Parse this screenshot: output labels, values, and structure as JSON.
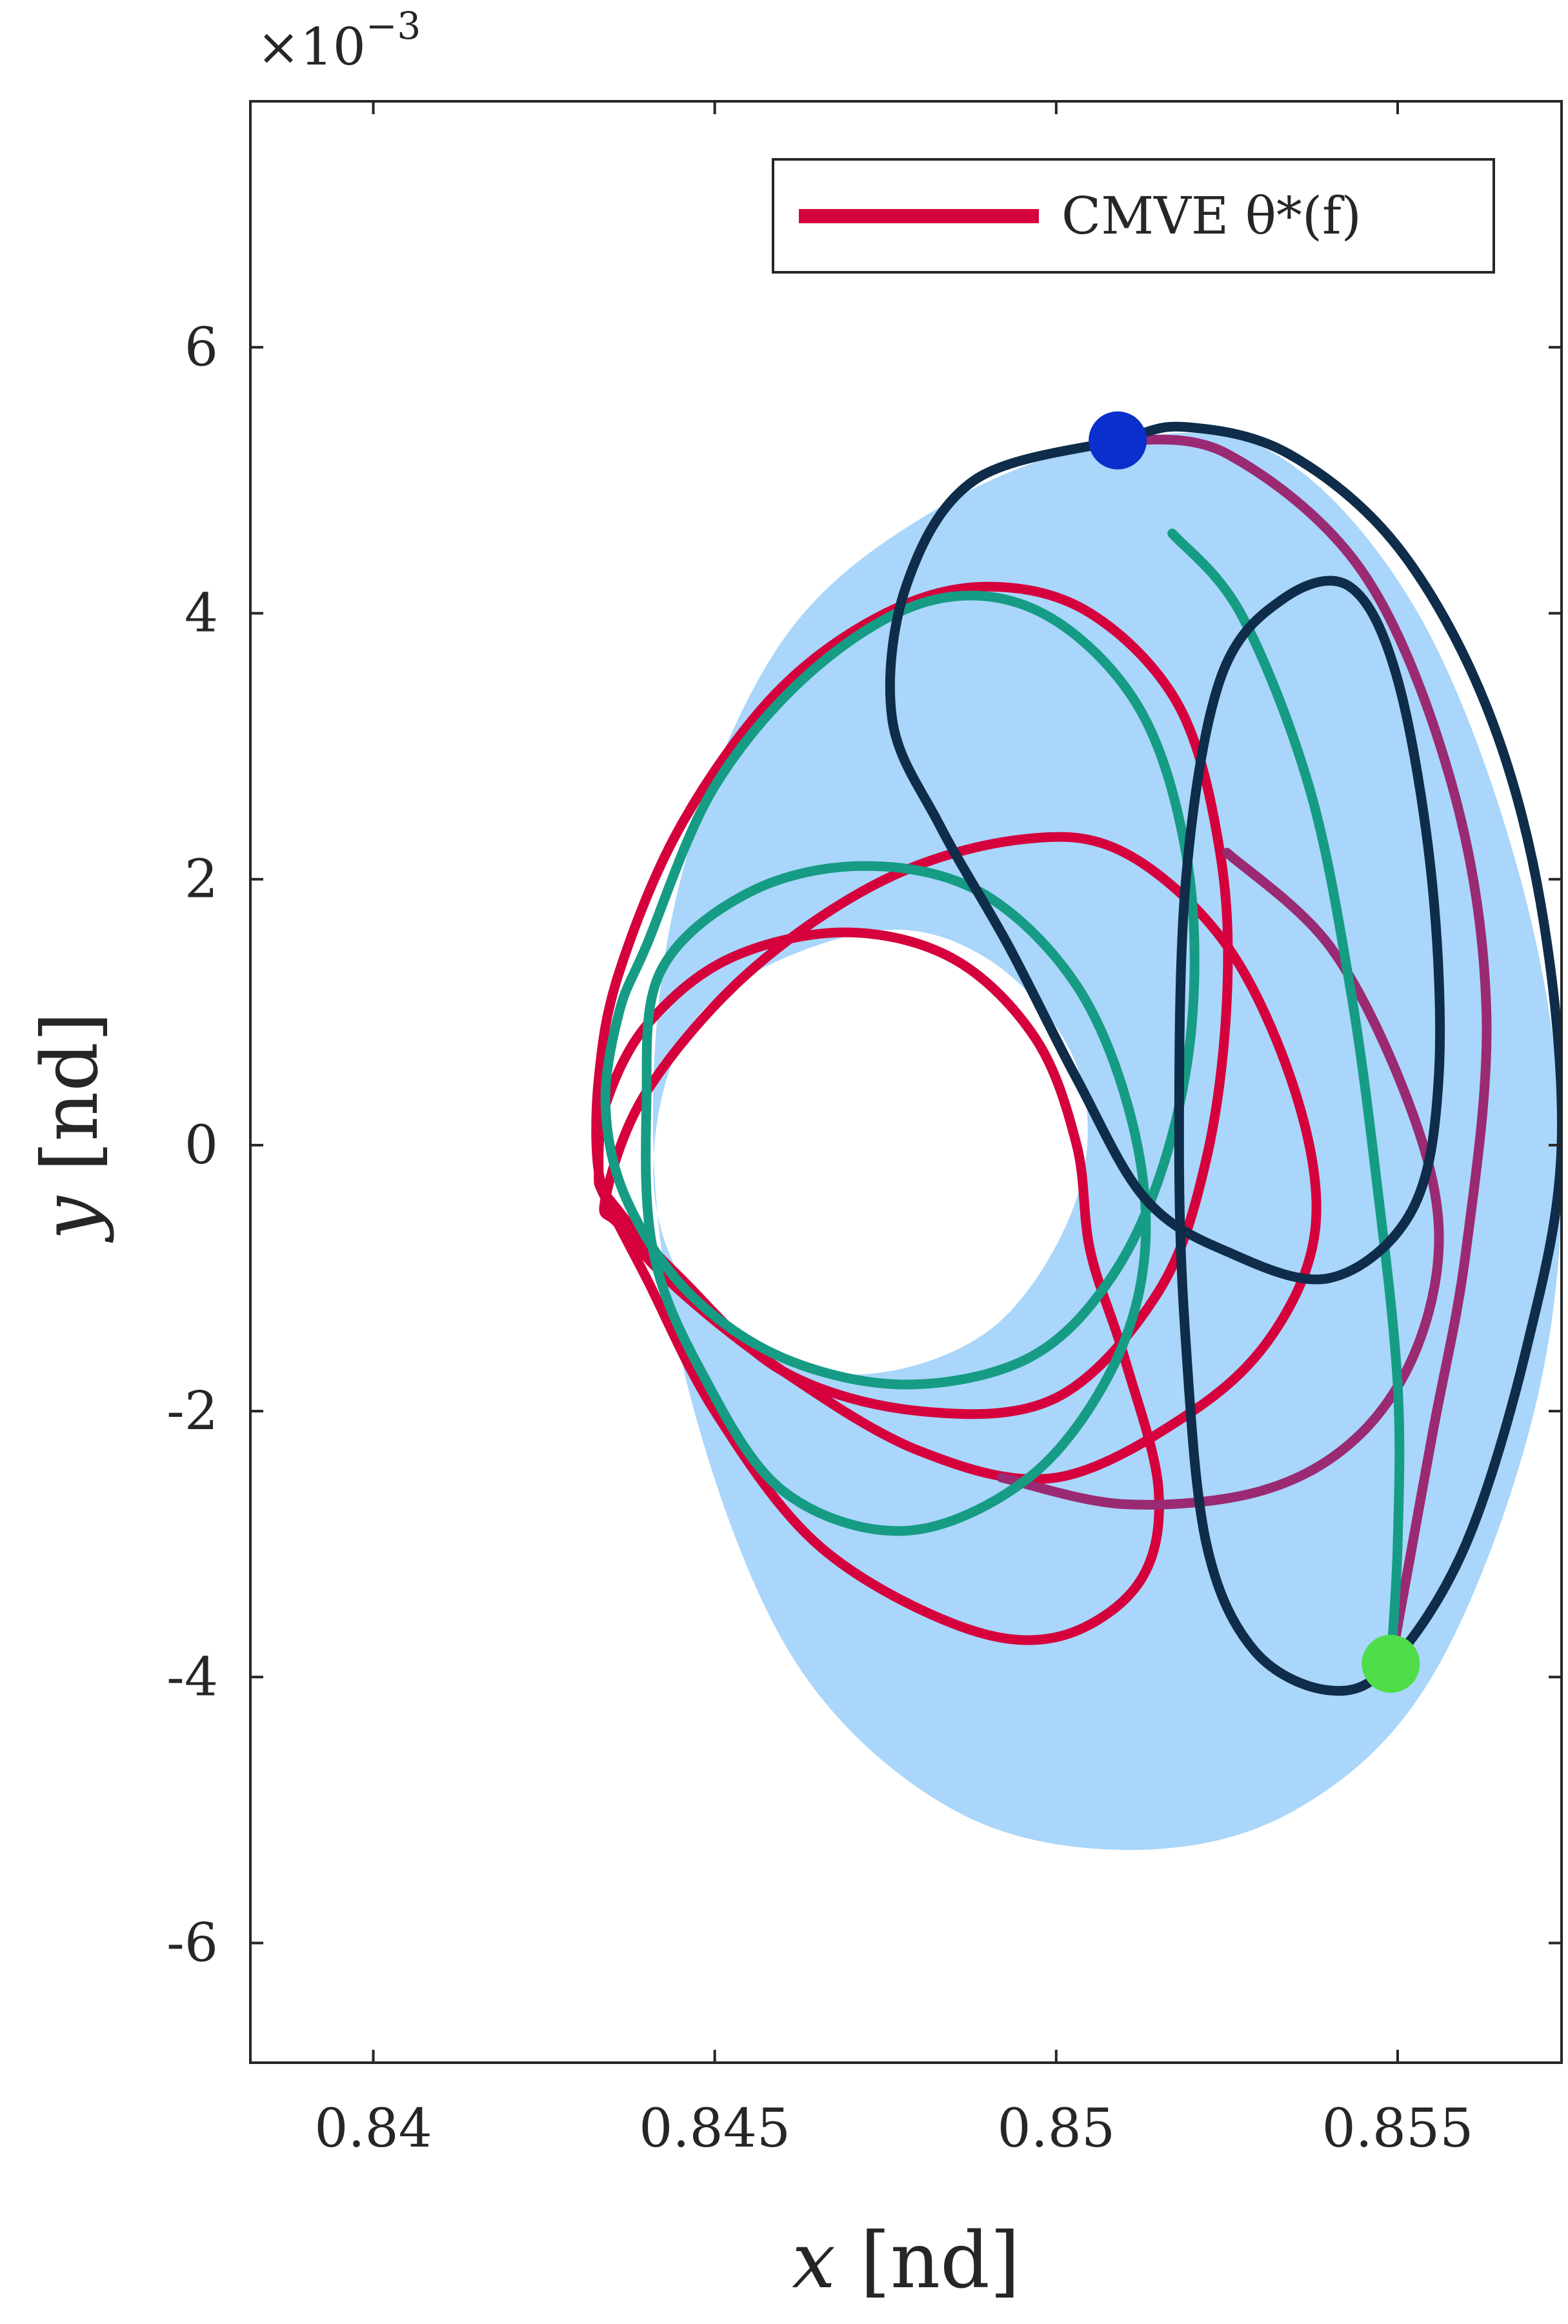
{
  "chart_data": {
    "type": "line",
    "xlabel": {
      "var": "x",
      "unit": "[nd]"
    },
    "ylabel": {
      "var": "y",
      "unit": "[nd]"
    },
    "xlim": [
      0.8382,
      0.8574
    ],
    "ylim": [
      -0.0069,
      0.00785
    ],
    "x_ticks": [
      0.84,
      0.845,
      0.85,
      0.855
    ],
    "x_tick_labels": [
      "0.84",
      "0.845",
      "0.85",
      "0.855"
    ],
    "y_ticks": [
      0.006,
      0.004,
      0.002,
      0.0,
      -0.002,
      -0.004,
      -0.006
    ],
    "y_tick_labels": [
      "6",
      "4",
      "2",
      "0",
      "-2",
      "-4",
      "-6"
    ],
    "y_exponent": {
      "base": "×10",
      "power": "−3"
    },
    "grid": false,
    "legend": {
      "placement": "top-right",
      "entries": [
        {
          "label": "CMVE θ*(f)",
          "color": "#d5003c"
        }
      ]
    },
    "region": {
      "name": "reachable region",
      "color": "#a9d6fa",
      "outer_boundary": [
        [
          0.8509,
          0.0053
        ],
        [
          0.8532,
          0.0052
        ],
        [
          0.8553,
          0.004
        ],
        [
          0.8568,
          0.002
        ],
        [
          0.8574,
          0.0
        ],
        [
          0.857,
          -0.002
        ],
        [
          0.8555,
          -0.004
        ],
        [
          0.8535,
          -0.005
        ],
        [
          0.8511,
          -0.0053
        ],
        [
          0.8485,
          -0.005
        ],
        [
          0.8462,
          -0.0039
        ],
        [
          0.8447,
          -0.002
        ],
        [
          0.8441,
          0.0
        ],
        [
          0.8445,
          0.002
        ],
        [
          0.846,
          0.0038
        ],
        [
          0.8483,
          0.0048
        ]
      ],
      "inner_hole": [
        [
          0.8472,
          0.0016
        ],
        [
          0.849,
          0.0014
        ],
        [
          0.8503,
          0.0006
        ],
        [
          0.8503,
          -0.0004
        ],
        [
          0.849,
          -0.0014
        ],
        [
          0.8468,
          -0.00172
        ],
        [
          0.8448,
          -0.0012
        ],
        [
          0.8441,
          -0.0002
        ],
        [
          0.8448,
          0.001
        ]
      ]
    },
    "series": [
      {
        "color": "#d5003c",
        "segments": [
          [
            [
              0.8433,
              -0.0002
            ],
            [
              0.8433,
              0.0005
            ],
            [
              0.8436,
              0.0013
            ],
            [
              0.8445,
              0.0024
            ],
            [
              0.8459,
              0.0034
            ],
            [
              0.8475,
              0.004
            ],
            [
              0.849,
              0.0042
            ],
            [
              0.8505,
              0.004
            ],
            [
              0.8518,
              0.0033
            ],
            [
              0.8524,
              0.0022
            ],
            [
              0.8525,
              0.0011
            ],
            [
              0.8522,
              -0.0001
            ],
            [
              0.8515,
              -0.0011
            ],
            [
              0.85,
              -0.0019
            ],
            [
              0.848,
              -0.002
            ],
            [
              0.846,
              -0.0017
            ],
            [
              0.8445,
              -0.001
            ],
            [
              0.8436,
              -0.0005
            ],
            [
              0.8433,
              -0.0002
            ]
          ],
          [
            [
              0.8433,
              -0.0002
            ],
            [
              0.8434,
              0.0003
            ],
            [
              0.844,
              0.0009
            ],
            [
              0.8452,
              0.0014
            ],
            [
              0.8469,
              0.0016
            ],
            [
              0.8485,
              0.0014
            ],
            [
              0.8497,
              0.0008
            ],
            [
              0.8503,
              0.0
            ],
            [
              0.8505,
              -0.0008
            ],
            [
              0.851,
              -0.0016
            ],
            [
              0.8515,
              -0.0026
            ],
            [
              0.8512,
              -0.0033
            ],
            [
              0.85,
              -0.0037
            ],
            [
              0.8485,
              -0.0036
            ],
            [
              0.8465,
              -0.003
            ],
            [
              0.845,
              -0.002
            ],
            [
              0.844,
              -0.001
            ],
            [
              0.8434,
              -0.0004
            ],
            [
              0.8433,
              -0.0002
            ]
          ],
          [
            [
              0.8434,
              -0.0004
            ],
            [
              0.844,
              0.0004
            ],
            [
              0.8455,
              0.0013
            ],
            [
              0.8475,
              0.002
            ],
            [
              0.8495,
              0.0023
            ],
            [
              0.851,
              0.0022
            ],
            [
              0.8525,
              0.0015
            ],
            [
              0.8535,
              0.0004
            ],
            [
              0.8538,
              -0.0006
            ],
            [
              0.8532,
              -0.0014
            ],
            [
              0.852,
              -0.002
            ],
            [
              0.85,
              -0.0025
            ],
            [
              0.848,
              -0.0023
            ],
            [
              0.846,
              -0.0017
            ],
            [
              0.8445,
              -0.0011
            ],
            [
              0.8436,
              -0.0006
            ],
            [
              0.8434,
              -0.0004
            ]
          ]
        ]
      },
      {
        "color": "#9a2a72",
        "segments": [
          [
            [
              0.8509,
              0.0053
            ],
            [
              0.8525,
              0.0052
            ],
            [
              0.8545,
              0.0043
            ],
            [
              0.8558,
              0.0027
            ],
            [
              0.8563,
              0.001
            ],
            [
              0.856,
              -0.0008
            ],
            [
              0.8555,
              -0.0022
            ],
            [
              0.8549,
              -0.0039
            ]
          ],
          [
            [
              0.8525,
              0.0022
            ],
            [
              0.854,
              0.0015
            ],
            [
              0.8551,
              0.0004
            ],
            [
              0.8556,
              -0.0006
            ],
            [
              0.8553,
              -0.0015
            ],
            [
              0.8544,
              -0.0022
            ],
            [
              0.853,
              -0.0026
            ],
            [
              0.851,
              -0.0027
            ],
            [
              0.8492,
              -0.0025
            ]
          ]
        ]
      },
      {
        "color": "#169c84",
        "segments": [
          [
            [
              0.8442,
              0.0013
            ],
            [
              0.8455,
              0.0019
            ],
            [
              0.8472,
              0.0021
            ],
            [
              0.8489,
              0.0019
            ],
            [
              0.8503,
              0.0012
            ],
            [
              0.8511,
              0.0002
            ],
            [
              0.8513,
              -0.0008
            ],
            [
              0.8508,
              -0.0017
            ],
            [
              0.8496,
              -0.0025
            ],
            [
              0.8478,
              -0.0029
            ],
            [
              0.846,
              -0.0026
            ],
            [
              0.8448,
              -0.0017
            ],
            [
              0.8441,
              -0.0008
            ],
            [
              0.844,
              0.0003
            ],
            [
              0.8442,
              0.0013
            ]
          ],
          [
            [
              0.844,
              0.0015
            ],
            [
              0.845,
              0.0027
            ],
            [
              0.8465,
              0.0036
            ],
            [
              0.8482,
              0.0041
            ],
            [
              0.8498,
              0.004
            ],
            [
              0.8512,
              0.0033
            ],
            [
              0.8519,
              0.0022
            ],
            [
              0.852,
              0.001
            ],
            [
              0.8516,
              -0.0001
            ],
            [
              0.8508,
              -0.001
            ],
            [
              0.8496,
              -0.0016
            ],
            [
              0.8478,
              -0.0018
            ],
            [
              0.846,
              -0.0016
            ],
            [
              0.8446,
              -0.0011
            ],
            [
              0.8437,
              -0.0004
            ],
            [
              0.8434,
              0.0003
            ],
            [
              0.8436,
              0.001
            ],
            [
              0.844,
              0.0015
            ]
          ],
          [
            [
              0.8517,
              0.0046
            ],
            [
              0.8527,
              0.004
            ],
            [
              0.8537,
              0.0027
            ],
            [
              0.8543,
              0.0012
            ],
            [
              0.8547,
              -0.0003
            ],
            [
              0.855,
              -0.0018
            ],
            [
              0.855,
              -0.003
            ],
            [
              0.8549,
              -0.0039
            ]
          ]
        ]
      },
      {
        "color": "#0f2d4a",
        "segments": [
          [
            [
              0.8509,
              0.0053
            ],
            [
              0.8488,
              0.005
            ],
            [
              0.8478,
              0.0042
            ],
            [
              0.8476,
              0.0032
            ],
            [
              0.8483,
              0.0024
            ],
            [
              0.8493,
              0.0015
            ],
            [
              0.8503,
              0.0005
            ],
            [
              0.8513,
              -0.0004
            ],
            [
              0.8525,
              -0.0008
            ],
            [
              0.854,
              -0.001
            ],
            [
              0.8552,
              -0.0005
            ],
            [
              0.8556,
              0.0005
            ],
            [
              0.8555,
              0.002
            ],
            [
              0.855,
              0.0035
            ],
            [
              0.8543,
              0.0042
            ],
            [
              0.8533,
              0.0041
            ],
            [
              0.8524,
              0.0035
            ],
            [
              0.8519,
              0.002
            ],
            [
              0.8518,
              0.0
            ],
            [
              0.8519,
              -0.0015
            ],
            [
              0.8522,
              -0.003
            ],
            [
              0.8529,
              -0.0038
            ],
            [
              0.854,
              -0.0041
            ],
            [
              0.8549,
              -0.0039
            ],
            [
              0.856,
              -0.003
            ],
            [
              0.8569,
              -0.0015
            ],
            [
              0.8574,
              0.0
            ],
            [
              0.8571,
              0.0018
            ],
            [
              0.8563,
              0.0033
            ],
            [
              0.855,
              0.0045
            ],
            [
              0.8534,
              0.0052
            ],
            [
              0.8519,
              0.0054
            ],
            [
              0.8509,
              0.0053
            ]
          ]
        ]
      }
    ],
    "markers": [
      {
        "name": "start",
        "x": 0.8509,
        "y": 0.0053,
        "color": "#0a2fcc"
      },
      {
        "name": "end",
        "x": 0.8549,
        "y": -0.0039,
        "color": "#4fdd4a"
      }
    ]
  }
}
